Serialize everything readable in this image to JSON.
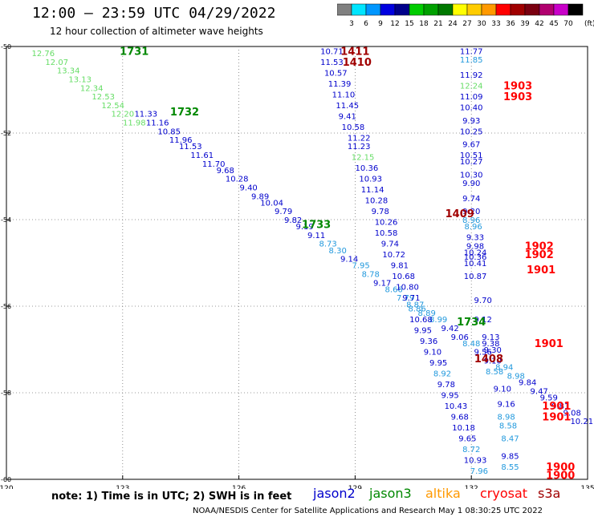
{
  "title": "12:00 – 23:59 UTC 04/29/2022",
  "subtitle": "12 hour collection of altimeter wave heights",
  "footnote": "note:  1) Time is in UTC;  2) SWH is in feet",
  "credit": "NOAA/NESDIS Center for Satellite Applications and Research    May  1 08:30:25 UTC 2022",
  "colorbar": {
    "unit": "(ft)",
    "ticks": [
      "3",
      "6",
      "9",
      "12",
      "15",
      "18",
      "21",
      "24",
      "27",
      "30",
      "33",
      "36",
      "39",
      "42",
      "45",
      "70"
    ],
    "colors": [
      "#808080",
      "#00e5ff",
      "#0096ff",
      "#0000e0",
      "#00008a",
      "#00cc00",
      "#00a000",
      "#007800",
      "#ffff00",
      "#ffcc00",
      "#ff9900",
      "#ff0000",
      "#a00000",
      "#7a0010",
      "#b0006e",
      "#c800c8",
      "#000000"
    ]
  },
  "satellites": [
    {
      "name": "jason2",
      "color": "#0000cc"
    },
    {
      "name": "jason3",
      "color": "#008800"
    },
    {
      "name": "altika",
      "color": "#ff9900"
    },
    {
      "name": "cryosat",
      "color": "#ff0000"
    },
    {
      "name": "s3a",
      "color": "#a00000"
    }
  ],
  "chart_data": {
    "type": "scatter",
    "xlim": [
      120,
      135
    ],
    "ylim": [
      -60,
      -50
    ],
    "x_ticks": [
      "120",
      "123",
      "126",
      "129",
      "132",
      "135"
    ],
    "y_ticks": [
      "-50",
      "-52",
      "-54",
      "-56",
      "-58",
      "-60"
    ],
    "grid": true,
    "time_labels": [
      {
        "x": 123.3,
        "y": -50.1,
        "label": "1731",
        "color": "#008800"
      },
      {
        "x": 124.6,
        "y": -51.5,
        "label": "1732",
        "color": "#008800"
      },
      {
        "x": 128.0,
        "y": -54.1,
        "label": "1733",
        "color": "#008800"
      },
      {
        "x": 132.0,
        "y": -56.35,
        "label": "1734",
        "color": "#008800"
      },
      {
        "x": 129.0,
        "y": -50.1,
        "label": "1411",
        "color": "#a00000"
      },
      {
        "x": 129.05,
        "y": -50.35,
        "label": "1410",
        "color": "#a00000"
      },
      {
        "x": 131.7,
        "y": -53.85,
        "label": "1409",
        "color": "#a00000"
      },
      {
        "x": 132.45,
        "y": -57.2,
        "label": "1408",
        "color": "#a00000"
      },
      {
        "x": 133.2,
        "y": -50.9,
        "label": "1903",
        "color": "#ff0000"
      },
      {
        "x": 133.2,
        "y": -51.15,
        "label": "1903",
        "color": "#ff0000"
      },
      {
        "x": 133.75,
        "y": -54.6,
        "label": "1902",
        "color": "#ff0000"
      },
      {
        "x": 133.75,
        "y": -54.8,
        "label": "1902",
        "color": "#ff0000"
      },
      {
        "x": 133.8,
        "y": -55.15,
        "label": "1901",
        "color": "#ff0000"
      },
      {
        "x": 134.0,
        "y": -56.85,
        "label": "1901",
        "color": "#ff0000"
      },
      {
        "x": 134.2,
        "y": -58.3,
        "label": "1901",
        "color": "#ff0000"
      },
      {
        "x": 134.2,
        "y": -58.55,
        "label": "1901",
        "color": "#ff0000"
      },
      {
        "x": 134.3,
        "y": -59.7,
        "label": "1900",
        "color": "#ff0000"
      },
      {
        "x": 134.3,
        "y": -59.9,
        "label": "1900",
        "color": "#ff0000"
      }
    ],
    "series": [
      {
        "name": "jason3 track 1731-1734",
        "values": [
          {
            "x": 120.95,
            "y": -50.15,
            "v": "12.76",
            "c": "#66dd66"
          },
          {
            "x": 121.3,
            "y": -50.35,
            "v": "12.07",
            "c": "#66dd66"
          },
          {
            "x": 121.6,
            "y": -50.55,
            "v": "13.34",
            "c": "#66dd66"
          },
          {
            "x": 121.9,
            "y": -50.75,
            "v": "13.13",
            "c": "#66dd66"
          },
          {
            "x": 122.2,
            "y": -50.95,
            "v": "12.34",
            "c": "#66dd66"
          },
          {
            "x": 122.5,
            "y": -51.15,
            "v": "12.53",
            "c": "#66dd66"
          },
          {
            "x": 122.75,
            "y": -51.35,
            "v": "12.54",
            "c": "#66dd66"
          },
          {
            "x": 123.0,
            "y": -51.55,
            "v": "12.20",
            "c": "#66dd66"
          },
          {
            "x": 123.3,
            "y": -51.75,
            "v": "11.98",
            "c": "#66dd66"
          },
          {
            "x": 123.6,
            "y": -51.55,
            "v": "11.33",
            "c": "#0000cc"
          },
          {
            "x": 123.9,
            "y": -51.75,
            "v": "11.16",
            "c": "#0000cc"
          },
          {
            "x": 124.2,
            "y": -51.95,
            "v": "10.85",
            "c": "#0000cc"
          },
          {
            "x": 124.5,
            "y": -52.15,
            "v": "11.96",
            "c": "#0000cc"
          },
          {
            "x": 124.75,
            "y": -52.3,
            "v": "11.53",
            "c": "#0000cc"
          },
          {
            "x": 125.05,
            "y": -52.5,
            "v": "11.61",
            "c": "#0000cc"
          },
          {
            "x": 125.35,
            "y": -52.7,
            "v": "11.70",
            "c": "#0000cc"
          },
          {
            "x": 125.65,
            "y": -52.85,
            "v": "9.68",
            "c": "#0000cc"
          },
          {
            "x": 125.95,
            "y": -53.05,
            "v": "10.28",
            "c": "#0000cc"
          },
          {
            "x": 126.25,
            "y": -53.25,
            "v": "9.40",
            "c": "#0000cc"
          },
          {
            "x": 126.55,
            "y": -53.45,
            "v": "9.89",
            "c": "#0000cc"
          },
          {
            "x": 126.85,
            "y": -53.6,
            "v": "10.04",
            "c": "#0000cc"
          },
          {
            "x": 127.15,
            "y": -53.8,
            "v": "9.79",
            "c": "#0000cc"
          },
          {
            "x": 127.4,
            "y": -54.0,
            "v": "9.82",
            "c": "#0000cc"
          },
          {
            "x": 127.7,
            "y": -54.15,
            "v": "9.19",
            "c": "#0000cc"
          },
          {
            "x": 128.0,
            "y": -54.35,
            "v": "9.11",
            "c": "#0000cc"
          },
          {
            "x": 128.3,
            "y": -54.55,
            "v": "8.73",
            "c": "#2299dd"
          },
          {
            "x": 128.55,
            "y": -54.7,
            "v": "8.30",
            "c": "#2299dd"
          },
          {
            "x": 128.85,
            "y": -54.9,
            "v": "9.14",
            "c": "#0000cc"
          },
          {
            "x": 129.15,
            "y": -55.05,
            "v": "7.95",
            "c": "#2299dd"
          },
          {
            "x": 129.4,
            "y": -55.25,
            "v": "8.78",
            "c": "#2299dd"
          },
          {
            "x": 129.7,
            "y": -55.45,
            "v": "9.17",
            "c": "#0000cc"
          },
          {
            "x": 130.0,
            "y": -55.6,
            "v": "8.66",
            "c": "#2299dd"
          },
          {
            "x": 130.3,
            "y": -55.8,
            "v": "7.79",
            "c": "#2299dd"
          },
          {
            "x": 130.55,
            "y": -55.95,
            "v": "8.87",
            "c": "#2299dd"
          },
          {
            "x": 130.85,
            "y": -56.15,
            "v": "8.89",
            "c": "#2299dd"
          },
          {
            "x": 131.15,
            "y": -56.3,
            "v": "8.99",
            "c": "#2299dd"
          },
          {
            "x": 131.45,
            "y": -56.5,
            "v": "9.42",
            "c": "#0000cc"
          },
          {
            "x": 131.7,
            "y": -56.7,
            "v": "9.06",
            "c": "#0000cc"
          },
          {
            "x": 132.0,
            "y": -56.85,
            "v": "8.48",
            "c": "#2299dd"
          },
          {
            "x": 132.3,
            "y": -57.05,
            "v": "9.56",
            "c": "#0000cc"
          },
          {
            "x": 132.55,
            "y": -57.25,
            "v": "9.10",
            "c": "#0000cc"
          },
          {
            "x": 132.85,
            "y": -57.4,
            "v": "8.94",
            "c": "#2299dd"
          },
          {
            "x": 133.15,
            "y": -57.6,
            "v": "8.98",
            "c": "#2299dd"
          },
          {
            "x": 133.45,
            "y": -57.75,
            "v": "9.84",
            "c": "#0000cc"
          },
          {
            "x": 133.75,
            "y": -57.95,
            "v": "9.47",
            "c": "#0000cc"
          },
          {
            "x": 134.0,
            "y": -58.1,
            "v": "9.59",
            "c": "#0000cc"
          },
          {
            "x": 134.3,
            "y": -58.3,
            "v": "9.81",
            "c": "#0000cc"
          },
          {
            "x": 134.6,
            "y": -58.45,
            "v": "9.08",
            "c": "#0000cc"
          },
          {
            "x": 134.85,
            "y": -58.65,
            "v": "10.21",
            "c": "#0000cc"
          }
        ]
      },
      {
        "name": "s3a track 1408-1411",
        "values": [
          {
            "x": 128.4,
            "y": -50.1,
            "v": "10.71",
            "c": "#0000cc"
          },
          {
            "x": 128.4,
            "y": -50.35,
            "v": "11.53",
            "c": "#0000cc"
          },
          {
            "x": 128.5,
            "y": -50.6,
            "v": "10.57",
            "c": "#0000cc"
          },
          {
            "x": 128.6,
            "y": -50.85,
            "v": "11.39",
            "c": "#0000cc"
          },
          {
            "x": 128.7,
            "y": -51.1,
            "v": "11.10",
            "c": "#0000cc"
          },
          {
            "x": 128.8,
            "y": -51.35,
            "v": "11.45",
            "c": "#0000cc"
          },
          {
            "x": 128.8,
            "y": -51.6,
            "v": "9.41",
            "c": "#0000cc"
          },
          {
            "x": 128.95,
            "y": -51.85,
            "v": "10.58",
            "c": "#0000cc"
          },
          {
            "x": 129.1,
            "y": -52.1,
            "v": "11.22",
            "c": "#0000cc"
          },
          {
            "x": 129.1,
            "y": -52.3,
            "v": "11.23",
            "c": "#0000cc"
          },
          {
            "x": 129.2,
            "y": -52.55,
            "v": "12.15",
            "c": "#66dd66"
          },
          {
            "x": 129.3,
            "y": -52.8,
            "v": "10.36",
            "c": "#0000cc"
          },
          {
            "x": 129.4,
            "y": -53.05,
            "v": "10.93",
            "c": "#0000cc"
          },
          {
            "x": 129.45,
            "y": -53.3,
            "v": "11.14",
            "c": "#0000cc"
          },
          {
            "x": 129.55,
            "y": -53.55,
            "v": "10.28",
            "c": "#0000cc"
          },
          {
            "x": 129.65,
            "y": -53.8,
            "v": "9.78",
            "c": "#0000cc"
          },
          {
            "x": 129.8,
            "y": -54.05,
            "v": "10.26",
            "c": "#0000cc"
          },
          {
            "x": 129.8,
            "y": -54.3,
            "v": "10.58",
            "c": "#0000cc"
          },
          {
            "x": 129.9,
            "y": -54.55,
            "v": "9.74",
            "c": "#0000cc"
          },
          {
            "x": 130.0,
            "y": -54.8,
            "v": "10.72",
            "c": "#0000cc"
          },
          {
            "x": 130.15,
            "y": -55.05,
            "v": "9.81",
            "c": "#0000cc"
          },
          {
            "x": 130.25,
            "y": -55.3,
            "v": "10.68",
            "c": "#0000cc"
          },
          {
            "x": 130.35,
            "y": -55.55,
            "v": "10.80",
            "c": "#0000cc"
          },
          {
            "x": 130.45,
            "y": -55.8,
            "v": "9.71",
            "c": "#0000cc"
          },
          {
            "x": 130.6,
            "y": -56.05,
            "v": "8.86",
            "c": "#2299dd"
          },
          {
            "x": 130.7,
            "y": -56.3,
            "v": "10.68",
            "c": "#0000cc"
          },
          {
            "x": 130.75,
            "y": -56.55,
            "v": "9.95",
            "c": "#0000cc"
          },
          {
            "x": 130.9,
            "y": -56.8,
            "v": "9.36",
            "c": "#0000cc"
          },
          {
            "x": 131.0,
            "y": -57.05,
            "v": "9.10",
            "c": "#0000cc"
          },
          {
            "x": 131.15,
            "y": -57.3,
            "v": "9.95",
            "c": "#0000cc"
          },
          {
            "x": 131.25,
            "y": -57.55,
            "v": "8.92",
            "c": "#2299dd"
          },
          {
            "x": 131.35,
            "y": -57.8,
            "v": "9.78",
            "c": "#0000cc"
          },
          {
            "x": 131.45,
            "y": -58.05,
            "v": "9.95",
            "c": "#0000cc"
          },
          {
            "x": 131.6,
            "y": -58.3,
            "v": "10.43",
            "c": "#0000cc"
          },
          {
            "x": 131.7,
            "y": -58.55,
            "v": "9.68",
            "c": "#0000cc"
          },
          {
            "x": 131.8,
            "y": -58.8,
            "v": "10.18",
            "c": "#0000cc"
          },
          {
            "x": 131.9,
            "y": -59.05,
            "v": "9.65",
            "c": "#0000cc"
          },
          {
            "x": 132.0,
            "y": -59.3,
            "v": "8.72",
            "c": "#2299dd"
          },
          {
            "x": 132.1,
            "y": -59.55,
            "v": "10.93",
            "c": "#0000cc"
          },
          {
            "x": 132.2,
            "y": -59.8,
            "v": "7.96",
            "c": "#2299dd"
          }
        ]
      },
      {
        "name": "cryosat track 1900-1903",
        "values": [
          {
            "x": 132.0,
            "y": -50.1,
            "v": "11.77",
            "c": "#0000cc"
          },
          {
            "x": 132.0,
            "y": -50.3,
            "v": "11.85",
            "c": "#2299dd"
          },
          {
            "x": 132.0,
            "y": -50.65,
            "v": "11.92",
            "c": "#0000cc"
          },
          {
            "x": 132.0,
            "y": -50.9,
            "v": "12.24",
            "c": "#66dd66"
          },
          {
            "x": 132.0,
            "y": -51.15,
            "v": "11.09",
            "c": "#0000cc"
          },
          {
            "x": 132.0,
            "y": -51.4,
            "v": "10.40",
            "c": "#0000cc"
          },
          {
            "x": 132.0,
            "y": -51.7,
            "v": "9.93",
            "c": "#0000cc"
          },
          {
            "x": 132.0,
            "y": -51.95,
            "v": "10.25",
            "c": "#0000cc"
          },
          {
            "x": 132.0,
            "y": -52.25,
            "v": "9.67",
            "c": "#0000cc"
          },
          {
            "x": 132.0,
            "y": -52.5,
            "v": "10.51",
            "c": "#0000cc"
          },
          {
            "x": 132.0,
            "y": -52.65,
            "v": "10.27",
            "c": "#0000cc"
          },
          {
            "x": 132.0,
            "y": -52.95,
            "v": "10.30",
            "c": "#0000cc"
          },
          {
            "x": 132.0,
            "y": -53.15,
            "v": "9.90",
            "c": "#0000cc"
          },
          {
            "x": 132.0,
            "y": -53.5,
            "v": "9.74",
            "c": "#0000cc"
          },
          {
            "x": 132.0,
            "y": -53.8,
            "v": "9.20",
            "c": "#0000cc"
          },
          {
            "x": 132.0,
            "y": -54.0,
            "v": "8.96",
            "c": "#2299dd"
          },
          {
            "x": 132.05,
            "y": -54.15,
            "v": "8.96",
            "c": "#2299dd"
          },
          {
            "x": 132.1,
            "y": -54.4,
            "v": "9.33",
            "c": "#0000cc"
          },
          {
            "x": 132.1,
            "y": -54.6,
            "v": "9.98",
            "c": "#0000cc"
          },
          {
            "x": 132.1,
            "y": -54.75,
            "v": "10.24",
            "c": "#0000cc"
          },
          {
            "x": 132.1,
            "y": -54.85,
            "v": "10.36",
            "c": "#0000cc"
          },
          {
            "x": 132.1,
            "y": -55.0,
            "v": "10.41",
            "c": "#0000cc"
          },
          {
            "x": 132.1,
            "y": -55.3,
            "v": "10.87",
            "c": "#0000cc"
          },
          {
            "x": 132.3,
            "y": -55.85,
            "v": "9.70",
            "c": "#0000cc"
          },
          {
            "x": 132.3,
            "y": -56.3,
            "v": "9.12",
            "c": "#0000cc"
          },
          {
            "x": 132.5,
            "y": -56.7,
            "v": "9.13",
            "c": "#0000cc"
          },
          {
            "x": 132.5,
            "y": -56.85,
            "v": "9.38",
            "c": "#0000cc"
          },
          {
            "x": 132.55,
            "y": -57.0,
            "v": "9.30",
            "c": "#0000cc"
          },
          {
            "x": 132.6,
            "y": -57.5,
            "v": "8.58",
            "c": "#2299dd"
          },
          {
            "x": 132.8,
            "y": -57.9,
            "v": "9.10",
            "c": "#0000cc"
          },
          {
            "x": 132.9,
            "y": -58.25,
            "v": "9.16",
            "c": "#0000cc"
          },
          {
            "x": 132.9,
            "y": -58.55,
            "v": "8.98",
            "c": "#2299dd"
          },
          {
            "x": 132.95,
            "y": -58.75,
            "v": "8.58",
            "c": "#2299dd"
          },
          {
            "x": 133.0,
            "y": -59.05,
            "v": "8.47",
            "c": "#2299dd"
          },
          {
            "x": 133.0,
            "y": -59.45,
            "v": "9.85",
            "c": "#0000cc"
          },
          {
            "x": 133.0,
            "y": -59.7,
            "v": "8.55",
            "c": "#2299dd"
          }
        ]
      }
    ]
  }
}
